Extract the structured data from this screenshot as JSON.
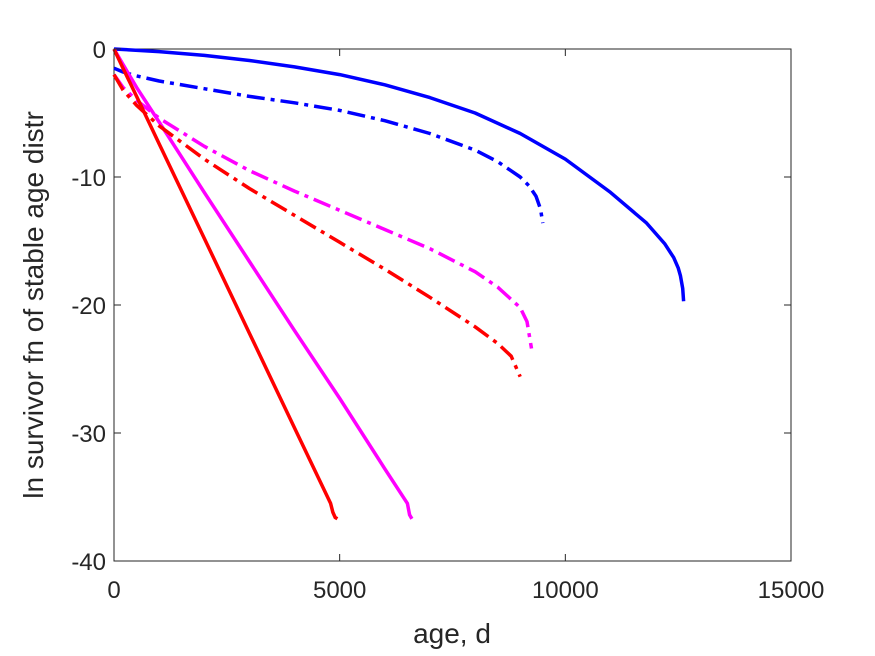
{
  "chart_data": {
    "type": "line",
    "title": "",
    "xlabel": "age, d",
    "ylabel": "ln survivor fn of stable age distr",
    "xlim": [
      0,
      15000
    ],
    "ylim": [
      -40,
      0
    ],
    "xticks": [
      0,
      5000,
      10000,
      15000
    ],
    "xtick_labels": [
      "0",
      "5000",
      "10000",
      "15000"
    ],
    "yticks": [
      0,
      -10,
      -20,
      -30,
      -40
    ],
    "ytick_labels": [
      "0",
      "-10",
      "-20",
      "-30",
      "-40"
    ],
    "grid": false,
    "legend": "none",
    "series": [
      {
        "color": "#0000ff",
        "style": "solid",
        "x": [
          0,
          1000,
          2000,
          3000,
          4000,
          5000,
          6000,
          7000,
          8000,
          9000,
          10000,
          11000,
          11800,
          12200,
          12400,
          12500,
          12550,
          12600,
          12620
        ],
        "y": [
          0,
          -0.2,
          -0.5,
          -0.9,
          -1.4,
          -2.0,
          -2.8,
          -3.8,
          -5.0,
          -6.6,
          -8.6,
          -11.2,
          -13.6,
          -15.2,
          -16.3,
          -17.1,
          -17.7,
          -18.7,
          -19.7
        ]
      },
      {
        "color": "#0000ff",
        "style": "dashdot",
        "x": [
          0,
          200,
          500,
          1000,
          2000,
          3000,
          4000,
          5000,
          6000,
          7000,
          8000,
          8500,
          9000,
          9200,
          9350,
          9450,
          9500
        ],
        "y": [
          -1.5,
          -1.8,
          -2.1,
          -2.5,
          -3.1,
          -3.7,
          -4.2,
          -4.8,
          -5.6,
          -6.6,
          -7.9,
          -8.8,
          -10.0,
          -10.7,
          -11.5,
          -12.5,
          -13.6
        ]
      },
      {
        "color": "#ff00ff",
        "style": "solid",
        "x": [
          0,
          200,
          500,
          1000,
          2000,
          3000,
          4000,
          5000,
          6000,
          6500,
          6550,
          6600
        ],
        "y": [
          0,
          -1.2,
          -3.0,
          -5.7,
          -11.2,
          -16.6,
          -22.0,
          -27.3,
          -32.8,
          -35.5,
          -36.4,
          -36.7
        ]
      },
      {
        "color": "#ff00ff",
        "style": "dashdot",
        "x": [
          0,
          200,
          500,
          1000,
          2000,
          3000,
          4000,
          5000,
          6000,
          7000,
          8000,
          8500,
          9000,
          9150,
          9250
        ],
        "y": [
          -2.0,
          -3.0,
          -4.0,
          -5.4,
          -7.6,
          -9.5,
          -11.1,
          -12.6,
          -14.1,
          -15.6,
          -17.4,
          -18.6,
          -20.2,
          -21.3,
          -23.4
        ]
      },
      {
        "color": "#ff0000",
        "style": "solid",
        "x": [
          0,
          200,
          500,
          1000,
          2000,
          3000,
          4000,
          4800,
          4850,
          4900,
          4950
        ],
        "y": [
          0,
          -1.5,
          -3.7,
          -7.4,
          -14.8,
          -22.2,
          -29.6,
          -35.5,
          -36.2,
          -36.6,
          -36.7
        ]
      },
      {
        "color": "#ff0000",
        "style": "dashdot",
        "x": [
          0,
          200,
          500,
          1000,
          2000,
          3000,
          4000,
          5000,
          6000,
          7000,
          8000,
          8500,
          8800,
          9000
        ],
        "y": [
          -2.0,
          -3.2,
          -4.4,
          -6.0,
          -8.6,
          -10.9,
          -13.0,
          -15.1,
          -17.2,
          -19.4,
          -21.7,
          -23.0,
          -24.0,
          -25.6
        ]
      }
    ]
  }
}
